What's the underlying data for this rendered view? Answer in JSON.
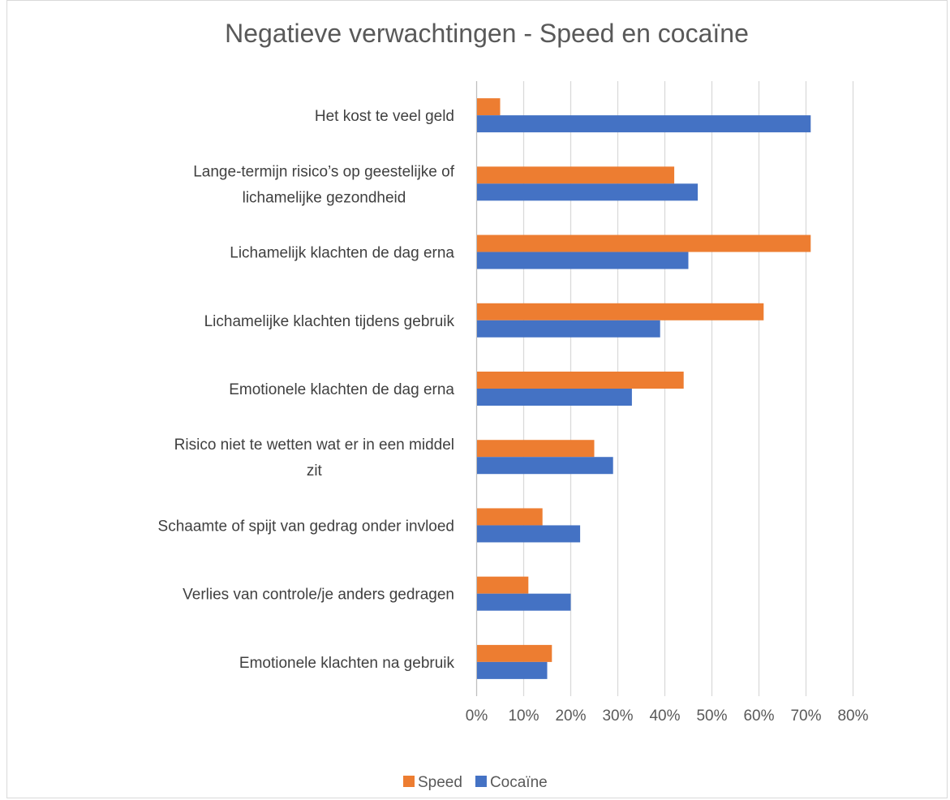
{
  "chart_data": {
    "type": "bar",
    "orientation": "horizontal",
    "title": "Negatieve verwachtingen - Speed en cocaïne",
    "xlabel": "",
    "ylabel": "",
    "xlim": [
      0,
      80
    ],
    "ticks": [
      "0%",
      "10%",
      "20%",
      "30%",
      "40%",
      "50%",
      "60%",
      "70%",
      "80%"
    ],
    "grid": true,
    "legend_position": "bottom",
    "categories": [
      [
        "Het kost te veel geld"
      ],
      [
        "Lange-termijn risico’s op geestelijke of",
        "lichamelijke gezondheid"
      ],
      [
        "Lichamelijk klachten de dag erna"
      ],
      [
        "Lichamelijke klachten tijdens gebruik"
      ],
      [
        "Emotionele klachten de dag erna"
      ],
      [
        "Risico niet te wetten wat er in een middel",
        "zit"
      ],
      [
        "Schaamte of spijt van gedrag onder invloed"
      ],
      [
        "Verlies van controle/je anders gedragen"
      ],
      [
        "Emotionele klachten na gebruik"
      ]
    ],
    "series": [
      {
        "name": "Speed",
        "color": "#ed7d31",
        "values": [
          5,
          42,
          71,
          61,
          44,
          25,
          14,
          11,
          16
        ]
      },
      {
        "name": "Cocaïne",
        "color": "#4472c4",
        "values": [
          71,
          47,
          45,
          39,
          33,
          29,
          22,
          20,
          15
        ]
      }
    ]
  }
}
